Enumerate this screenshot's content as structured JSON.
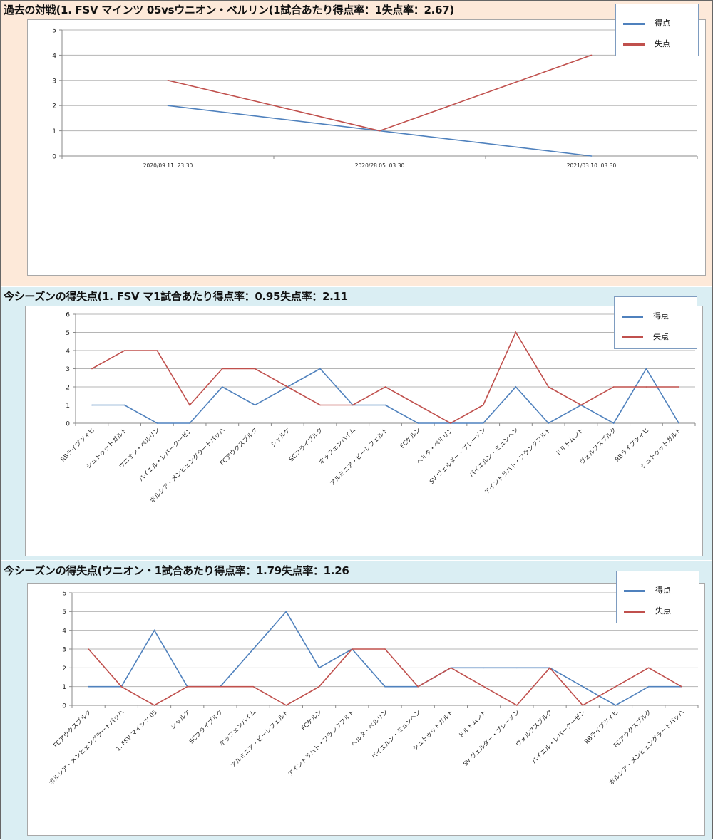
{
  "colors": {
    "goals": "#4f81bd",
    "conceded": "#c0504d",
    "grid": "#b5b5b5"
  },
  "chart_data": [
    {
      "type": "line",
      "title": "過去の対戦(1. FSV マインツ 05vsウニオン・ベルリン(1試合あたり得点率：1失点率：2.67)",
      "categories": [
        "2020/09.11. 23:30",
        "2020/28.05. 03:30",
        "2021/03.10. 03:30"
      ],
      "series": [
        {
          "name": "得点",
          "values": [
            2,
            1,
            0
          ]
        },
        {
          "name": "失点",
          "values": [
            3,
            1,
            4
          ]
        }
      ],
      "yticks": [
        "0",
        "1",
        "2",
        "3",
        "4",
        "5"
      ],
      "ylim": [
        0,
        5
      ],
      "grid": true,
      "legend": "top-right",
      "xlabel": "",
      "ylabel": ""
    },
    {
      "type": "line",
      "title": "今シーズンの得失点(1. FSV マ1試合あたり得点率：0.95失点率：2.11",
      "categories": [
        "RBライプツィヒ",
        "シュトゥットガルト",
        "ウニオン・ベルリン",
        "バイエル・レバークーゼン",
        "ボルシア・メンヒェングラートバッハ",
        "FCアウクスブルク",
        "シャルケ",
        "SCフライブルク",
        "ホッフェンハイム",
        "アルミニア・ビーレフェルト",
        "FCケルン",
        "ヘルタ・ベルリン",
        "SV ヴェルダー・ブレーメン",
        "バイエルン・ミュンヘン",
        "アイントラハト・フランクフルト",
        "ドルトムント",
        "ヴォルフスブルク",
        "RBライプツィヒ",
        "シュトゥットガルト"
      ],
      "series": [
        {
          "name": "得点",
          "values": [
            1,
            1,
            0,
            0,
            2,
            1,
            2,
            3,
            1,
            1,
            0,
            0,
            0,
            2,
            0,
            1,
            0,
            3,
            0
          ]
        },
        {
          "name": "失点",
          "values": [
            3,
            4,
            4,
            1,
            3,
            3,
            2,
            1,
            1,
            2,
            1,
            0,
            1,
            5,
            2,
            1,
            2,
            2,
            2
          ]
        }
      ],
      "yticks": [
        "0",
        "1",
        "2",
        "3",
        "4",
        "5",
        "6"
      ],
      "ylim": [
        0,
        6
      ],
      "grid": true,
      "legend": "top-right",
      "xlabel": "",
      "ylabel": ""
    },
    {
      "type": "line",
      "title": "今シーズンの得失点(ウニオン・1試合あたり得点率：1.79失点率：1.26",
      "categories": [
        "FCアウクスブルク",
        "ボルシア・メンヒェングラートバッハ",
        "1. FSV マインツ 05",
        "シャルケ",
        "SCフライブルク",
        "ホッフェンハイム",
        "アルミニア・ビーレフェルト",
        "FCケルン",
        "アイントラハト・フランクフルト",
        "ヘルタ・ベルリン",
        "バイエルン・ミュンヘン",
        "シュトゥットガルト",
        "ドルトムント",
        "SV ヴェルダー・ブレーメン",
        "ヴォルフスブルク",
        "バイエル・レバークーゼン",
        "RBライプツィヒ",
        "FCアウクスブルク",
        "ボルシア・メンヒェングラートバッハ"
      ],
      "series": [
        {
          "name": "得点",
          "values": [
            1,
            1,
            4,
            1,
            1,
            3,
            5,
            2,
            3,
            1,
            1,
            2,
            2,
            2,
            2,
            1,
            0,
            1,
            1
          ]
        },
        {
          "name": "失点",
          "values": [
            3,
            1,
            0,
            1,
            1,
            1,
            0,
            1,
            3,
            3,
            1,
            2,
            1,
            0,
            2,
            0,
            1,
            2,
            1
          ]
        }
      ],
      "yticks": [
        "0",
        "1",
        "2",
        "3",
        "4",
        "5",
        "6"
      ],
      "ylim": [
        0,
        6
      ],
      "grid": true,
      "legend": "top-right",
      "xlabel": "",
      "ylabel": ""
    }
  ]
}
